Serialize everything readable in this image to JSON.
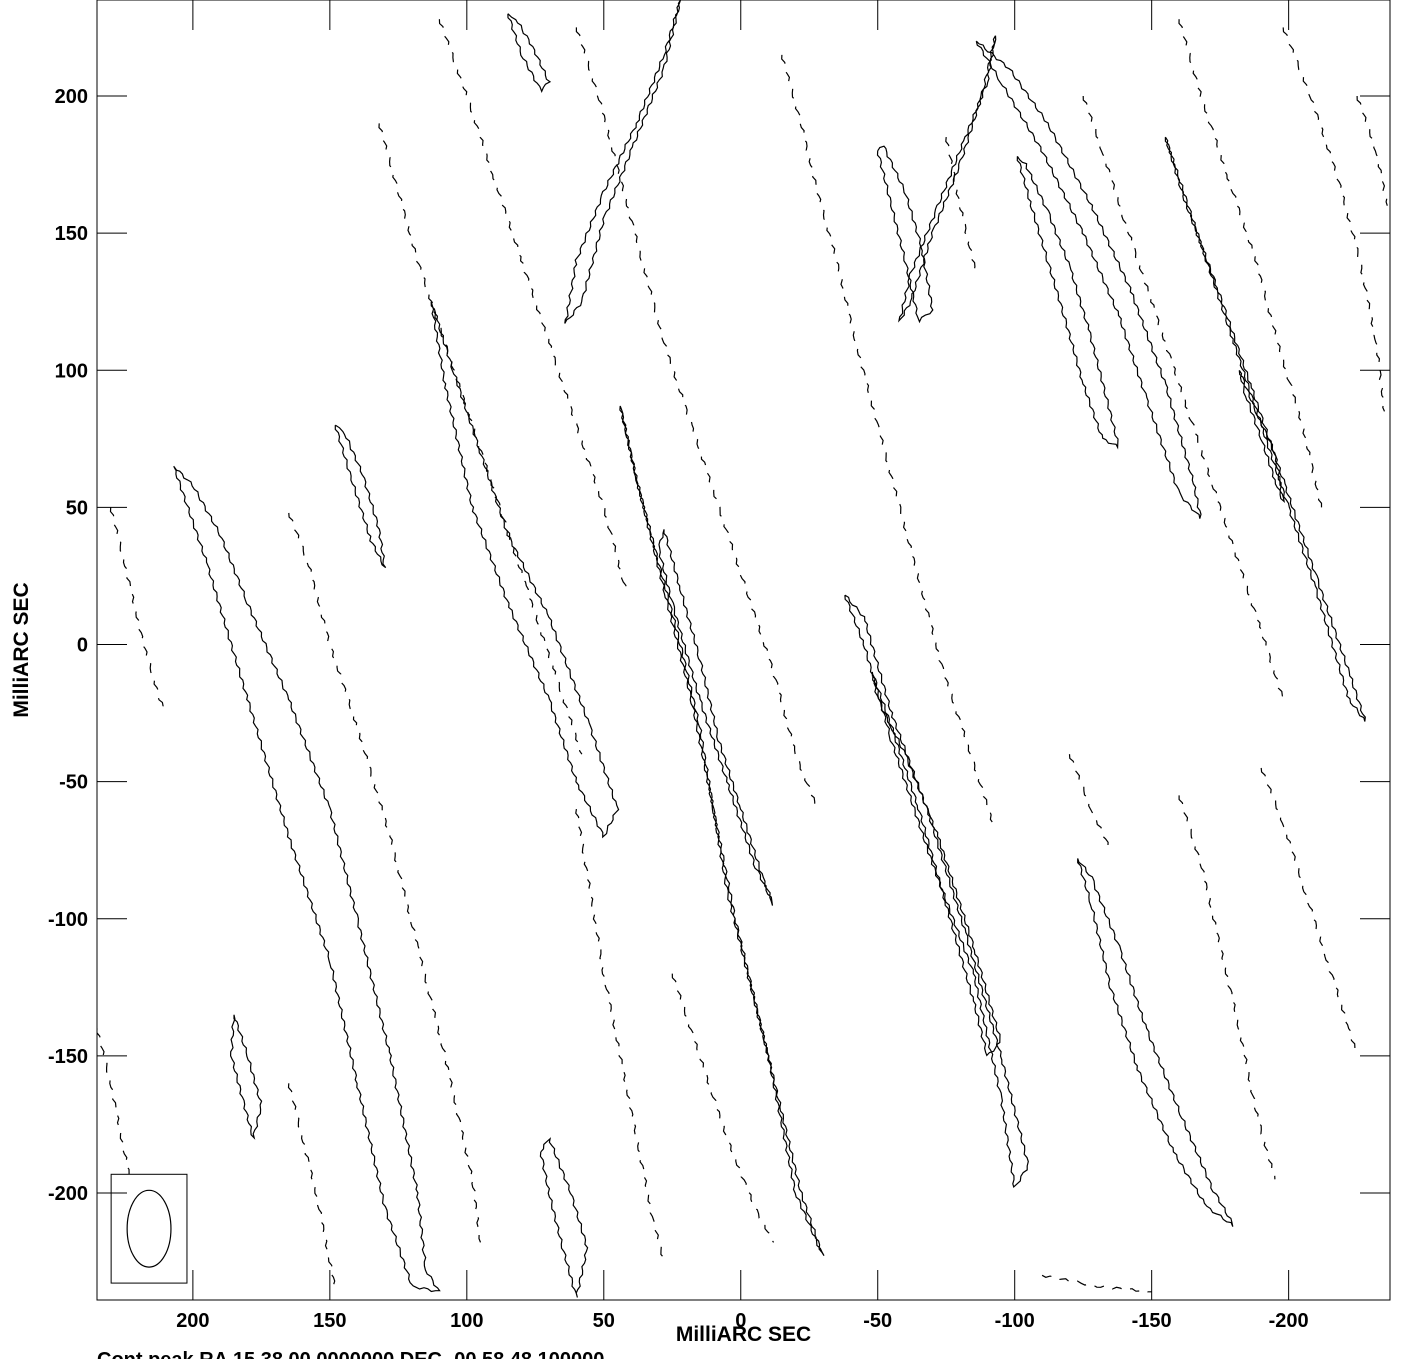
{
  "chart_data": {
    "type": "contour",
    "xlabel": "MilliARC SEC",
    "ylabel": "MilliARC SEC",
    "xlim": [
      235,
      -237
    ],
    "ylim": [
      -239,
      235
    ],
    "x_ticks": [
      200,
      150,
      100,
      50,
      0,
      -50,
      -100,
      -150,
      -200
    ],
    "x_tick_labels": [
      "200",
      "150",
      "100",
      "50",
      "0",
      "-50",
      "-100",
      "-150",
      "-200"
    ],
    "y_ticks": [
      200,
      150,
      100,
      50,
      0,
      -50,
      -100,
      -150,
      -200
    ],
    "y_tick_labels": [
      "200",
      "150",
      "100",
      "50",
      "0",
      "-50",
      "-100",
      "-150",
      "-200"
    ],
    "footer": "Cont peak RA 15 38 00.0000000 DEC -00 58 48.100000",
    "beam": {
      "center": [
        216,
        -213
      ],
      "major": 28,
      "minor": 16,
      "pa": 0
    },
    "positive_contours": [
      [
        [
          207,
          65
        ],
        [
          200,
          58
        ],
        [
          190,
          40
        ],
        [
          180,
          15
        ],
        [
          165,
          -20
        ],
        [
          150,
          -60
        ],
        [
          140,
          -100
        ],
        [
          128,
          -150
        ],
        [
          118,
          -200
        ],
        [
          115,
          -228
        ],
        [
          110,
          -236
        ],
        [
          120,
          -234
        ],
        [
          130,
          -205
        ],
        [
          140,
          -160
        ],
        [
          150,
          -115
        ],
        [
          165,
          -70
        ],
        [
          180,
          -20
        ],
        [
          195,
          30
        ],
        [
          207,
          65
        ]
      ],
      [
        [
          113,
          125
        ],
        [
          105,
          100
        ],
        [
          95,
          70
        ],
        [
          85,
          40
        ],
        [
          70,
          10
        ],
        [
          55,
          -30
        ],
        [
          45,
          -60
        ],
        [
          50,
          -70
        ],
        [
          60,
          -50
        ],
        [
          70,
          -20
        ],
        [
          85,
          15
        ],
        [
          98,
          50
        ],
        [
          108,
          95
        ],
        [
          113,
          125
        ]
      ],
      [
        [
          44,
          87
        ],
        [
          38,
          60
        ],
        [
          30,
          30
        ],
        [
          22,
          0
        ],
        [
          15,
          -30
        ],
        [
          10,
          -60
        ],
        [
          5,
          -90
        ],
        [
          0,
          -110
        ],
        [
          -10,
          -150
        ],
        [
          -20,
          -200
        ],
        [
          -30,
          -223
        ],
        [
          -22,
          -200
        ],
        [
          -10,
          -150
        ],
        [
          2,
          -100
        ],
        [
          10,
          -60
        ],
        [
          18,
          -20
        ],
        [
          28,
          20
        ],
        [
          38,
          60
        ],
        [
          44,
          87
        ]
      ],
      [
        [
          28,
          42
        ],
        [
          22,
          20
        ],
        [
          15,
          -5
        ],
        [
          8,
          -35
        ],
        [
          0,
          -60
        ],
        [
          -8,
          -85
        ],
        [
          -12,
          -95
        ],
        [
          -5,
          -80
        ],
        [
          5,
          -50
        ],
        [
          15,
          -20
        ],
        [
          25,
          15
        ],
        [
          30,
          35
        ],
        [
          28,
          42
        ]
      ],
      [
        [
          -38,
          18
        ],
        [
          -45,
          0
        ],
        [
          -55,
          -35
        ],
        [
          -70,
          -80
        ],
        [
          -85,
          -120
        ],
        [
          -95,
          -165
        ],
        [
          -100,
          -198
        ],
        [
          -105,
          -190
        ],
        [
          -95,
          -150
        ],
        [
          -82,
          -105
        ],
        [
          -68,
          -60
        ],
        [
          -55,
          -25
        ],
        [
          -45,
          10
        ],
        [
          -38,
          18
        ]
      ],
      [
        [
          -48,
          -10
        ],
        [
          -55,
          -30
        ],
        [
          -65,
          -60
        ],
        [
          -75,
          -95
        ],
        [
          -85,
          -130
        ],
        [
          -90,
          -150
        ],
        [
          -95,
          -145
        ],
        [
          -85,
          -110
        ],
        [
          -72,
          -70
        ],
        [
          -60,
          -40
        ],
        [
          -50,
          -20
        ],
        [
          -48,
          -10
        ]
      ],
      [
        [
          -93,
          222
        ],
        [
          -88,
          200
        ],
        [
          -80,
          175
        ],
        [
          -70,
          150
        ],
        [
          -62,
          125
        ],
        [
          -58,
          118
        ],
        [
          -62,
          135
        ],
        [
          -72,
          160
        ],
        [
          -82,
          185
        ],
        [
          -90,
          205
        ],
        [
          -93,
          222
        ]
      ],
      [
        [
          22,
          235
        ],
        [
          28,
          210
        ],
        [
          40,
          180
        ],
        [
          50,
          155
        ],
        [
          58,
          125
        ],
        [
          64,
          117
        ],
        [
          60,
          140
        ],
        [
          50,
          165
        ],
        [
          38,
          190
        ],
        [
          28,
          215
        ],
        [
          22,
          235
        ]
      ],
      [
        [
          -50,
          180
        ],
        [
          -55,
          160
        ],
        [
          -60,
          140
        ],
        [
          -65,
          118
        ],
        [
          -70,
          122
        ],
        [
          -66,
          145
        ],
        [
          -60,
          165
        ],
        [
          -52,
          182
        ],
        [
          -50,
          180
        ]
      ],
      [
        [
          -86,
          220
        ],
        [
          -95,
          205
        ],
        [
          -110,
          180
        ],
        [
          -125,
          150
        ],
        [
          -138,
          120
        ],
        [
          -148,
          90
        ],
        [
          -160,
          55
        ],
        [
          -168,
          46
        ],
        [
          -165,
          60
        ],
        [
          -155,
          95
        ],
        [
          -142,
          130
        ],
        [
          -128,
          160
        ],
        [
          -112,
          190
        ],
        [
          -98,
          210
        ],
        [
          -86,
          220
        ]
      ],
      [
        [
          -101,
          178
        ],
        [
          -106,
          160
        ],
        [
          -112,
          140
        ],
        [
          -118,
          120
        ],
        [
          -125,
          95
        ],
        [
          -132,
          75
        ],
        [
          -138,
          72
        ],
        [
          -133,
          92
        ],
        [
          -127,
          115
        ],
        [
          -120,
          138
        ],
        [
          -112,
          158
        ],
        [
          -104,
          175
        ],
        [
          -101,
          178
        ]
      ],
      [
        [
          -155,
          185
        ],
        [
          -160,
          170
        ],
        [
          -170,
          140
        ],
        [
          -180,
          110
        ],
        [
          -190,
          80
        ],
        [
          -200,
          50
        ],
        [
          -210,
          20
        ],
        [
          -222,
          -20
        ],
        [
          -228,
          -28
        ],
        [
          -222,
          -10
        ],
        [
          -210,
          25
        ],
        [
          -198,
          60
        ],
        [
          -186,
          95
        ],
        [
          -174,
          130
        ],
        [
          -162,
          162
        ],
        [
          -155,
          185
        ]
      ],
      [
        [
          -182,
          100
        ],
        [
          -188,
          85
        ],
        [
          -195,
          70
        ],
        [
          -198,
          52
        ],
        [
          -195,
          60
        ],
        [
          -190,
          75
        ],
        [
          -184,
          92
        ],
        [
          -182,
          100
        ]
      ],
      [
        [
          -123,
          -78
        ],
        [
          -128,
          -95
        ],
        [
          -135,
          -125
        ],
        [
          -145,
          -155
        ],
        [
          -158,
          -185
        ],
        [
          -170,
          -205
        ],
        [
          -180,
          -212
        ],
        [
          -172,
          -198
        ],
        [
          -160,
          -170
        ],
        [
          -148,
          -140
        ],
        [
          -138,
          -110
        ],
        [
          -128,
          -85
        ],
        [
          -123,
          -78
        ]
      ],
      [
        [
          185,
          -135
        ],
        [
          180,
          -150
        ],
        [
          175,
          -168
        ],
        [
          178,
          -180
        ],
        [
          182,
          -165
        ],
        [
          186,
          -150
        ],
        [
          185,
          -135
        ]
      ],
      [
        [
          148,
          80
        ],
        [
          142,
          60
        ],
        [
          135,
          38
        ],
        [
          130,
          28
        ],
        [
          132,
          42
        ],
        [
          138,
          62
        ],
        [
          145,
          78
        ],
        [
          148,
          80
        ]
      ],
      [
        [
          85,
          230
        ],
        [
          80,
          215
        ],
        [
          73,
          202
        ],
        [
          70,
          205
        ],
        [
          76,
          218
        ],
        [
          82,
          228
        ],
        [
          85,
          230
        ]
      ],
      [
        [
          73,
          -185
        ],
        [
          70,
          -200
        ],
        [
          65,
          -220
        ],
        [
          60,
          -238
        ],
        [
          56,
          -220
        ],
        [
          62,
          -200
        ],
        [
          70,
          -180
        ],
        [
          73,
          -185
        ]
      ]
    ],
    "negative_contours": [
      [
        [
          230,
          50
        ],
        [
          225,
          30
        ],
        [
          218,
          0
        ],
        [
          212,
          -20
        ],
        [
          210,
          -25
        ]
      ],
      [
        [
          165,
          48
        ],
        [
          158,
          30
        ],
        [
          150,
          0
        ],
        [
          140,
          -30
        ],
        [
          128,
          -70
        ],
        [
          118,
          -110
        ],
        [
          108,
          -150
        ],
        [
          98,
          -195
        ],
        [
          95,
          -218
        ]
      ],
      [
        [
          132,
          190
        ],
        [
          125,
          165
        ],
        [
          118,
          140
        ],
        [
          108,
          110
        ],
        [
          98,
          80
        ],
        [
          88,
          50
        ],
        [
          78,
          20
        ],
        [
          68,
          -10
        ],
        [
          58,
          -40
        ]
      ],
      [
        [
          110,
          228
        ],
        [
          100,
          200
        ],
        [
          90,
          170
        ],
        [
          80,
          140
        ],
        [
          70,
          110
        ],
        [
          60,
          80
        ],
        [
          50,
          50
        ],
        [
          42,
          20
        ]
      ],
      [
        [
          60,
          225
        ],
        [
          52,
          200
        ],
        [
          44,
          170
        ],
        [
          36,
          140
        ],
        [
          28,
          110
        ],
        [
          18,
          80
        ],
        [
          8,
          50
        ],
        [
          -2,
          20
        ],
        [
          -12,
          -10
        ],
        [
          -20,
          -40
        ],
        [
          -28,
          -60
        ]
      ],
      [
        [
          -15,
          215
        ],
        [
          -22,
          190
        ],
        [
          -28,
          165
        ],
        [
          -35,
          140
        ],
        [
          -42,
          110
        ],
        [
          -50,
          80
        ],
        [
          -58,
          50
        ],
        [
          -66,
          20
        ],
        [
          -74,
          -10
        ],
        [
          -84,
          -40
        ],
        [
          -92,
          -65
        ]
      ],
      [
        [
          -125,
          200
        ],
        [
          -132,
          180
        ],
        [
          -140,
          155
        ],
        [
          -150,
          125
        ],
        [
          -160,
          95
        ],
        [
          -170,
          65
        ],
        [
          -180,
          35
        ],
        [
          -190,
          5
        ],
        [
          -198,
          -20
        ]
      ],
      [
        [
          -160,
          228
        ],
        [
          -168,
          200
        ],
        [
          -178,
          170
        ],
        [
          -188,
          140
        ],
        [
          -196,
          110
        ],
        [
          -205,
          80
        ],
        [
          -212,
          50
        ]
      ],
      [
        [
          -198,
          225
        ],
        [
          -208,
          200
        ],
        [
          -218,
          170
        ],
        [
          -226,
          140
        ],
        [
          -232,
          110
        ],
        [
          -235,
          85
        ]
      ],
      [
        [
          -190,
          -45
        ],
        [
          -198,
          -65
        ],
        [
          -206,
          -90
        ],
        [
          -214,
          -115
        ],
        [
          -222,
          -140
        ],
        [
          -225,
          -150
        ]
      ],
      [
        [
          -160,
          -55
        ],
        [
          -168,
          -80
        ],
        [
          -175,
          -110
        ],
        [
          -182,
          -140
        ],
        [
          -188,
          -170
        ],
        [
          -195,
          -195
        ]
      ],
      [
        [
          -120,
          -40
        ],
        [
          -128,
          -60
        ],
        [
          -135,
          -75
        ]
      ],
      [
        [
          25,
          -120
        ],
        [
          15,
          -150
        ],
        [
          5,
          -180
        ],
        [
          -5,
          -205
        ],
        [
          -12,
          -218
        ]
      ],
      [
        [
          60,
          -60
        ],
        [
          55,
          -90
        ],
        [
          50,
          -120
        ],
        [
          44,
          -150
        ],
        [
          38,
          -180
        ],
        [
          32,
          -210
        ],
        [
          28,
          -225
        ]
      ],
      [
        [
          165,
          -160
        ],
        [
          160,
          -180
        ],
        [
          155,
          -200
        ],
        [
          150,
          -225
        ],
        [
          148,
          -235
        ]
      ],
      [
        [
          235,
          -140
        ],
        [
          230,
          -160
        ],
        [
          226,
          -180
        ],
        [
          222,
          -200
        ],
        [
          218,
          -220
        ],
        [
          214,
          -235
        ]
      ],
      [
        [
          -75,
          185
        ],
        [
          -80,
          160
        ],
        [
          -86,
          135
        ]
      ],
      [
        [
          -110,
          -230
        ],
        [
          -130,
          -234
        ],
        [
          -150,
          -236
        ]
      ],
      [
        [
          -225,
          200
        ],
        [
          -232,
          180
        ],
        [
          -236,
          160
        ]
      ]
    ]
  }
}
